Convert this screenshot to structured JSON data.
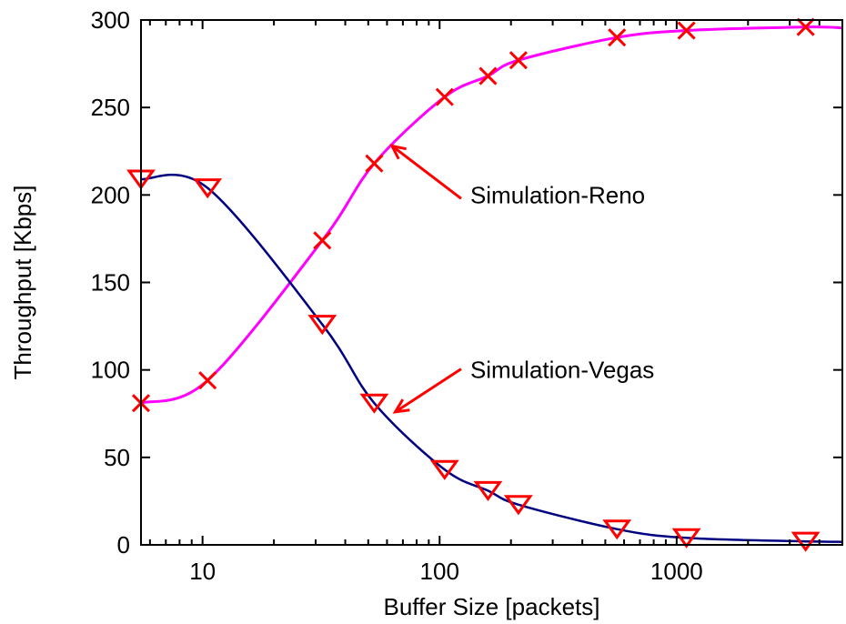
{
  "chart_data": {
    "type": "line",
    "title": "",
    "xlabel": "Buffer Size [packets]",
    "ylabel": "Throughput [Kbps]",
    "x_scale": "log",
    "xlim": [
      5.5,
      5000
    ],
    "ylim": [
      0,
      300
    ],
    "x_ticks": [
      10,
      100,
      1000
    ],
    "x_tick_labels": [
      "10",
      "100",
      "1000"
    ],
    "y_ticks": [
      0,
      50,
      100,
      150,
      200,
      250,
      300
    ],
    "y_tick_labels": [
      "0",
      "50",
      "100",
      "150",
      "200",
      "250",
      "300"
    ],
    "grid": false,
    "legend": "none",
    "series": [
      {
        "name": "Simulation-Reno",
        "color": "#ff00ff",
        "marker": "x",
        "marker_color": "#ff0000",
        "x": [
          5.5,
          10.5,
          32,
          53,
          105,
          160,
          215,
          560,
          1100,
          3500
        ],
        "y": [
          81,
          94,
          174,
          218,
          256,
          268,
          277,
          290,
          294,
          296
        ]
      },
      {
        "name": "Simulation-Vegas",
        "color": "#000080",
        "marker": "triangle-down-open",
        "marker_color": "#ff0000",
        "x": [
          5.5,
          10.5,
          32,
          53,
          105,
          160,
          215,
          560,
          1100,
          3500
        ],
        "y": [
          209,
          204,
          126,
          81,
          43,
          31,
          23,
          9,
          4,
          2
        ]
      }
    ],
    "annotations": [
      {
        "text": "Simulation-Reno",
        "series": 0,
        "arrow_to": {
          "x": 63,
          "y": 228
        },
        "label_at": {
          "x": 130,
          "y": 200
        }
      },
      {
        "text": "Simulation-Vegas",
        "series": 1,
        "arrow_to": {
          "x": 65,
          "y": 76
        },
        "label_at": {
          "x": 130,
          "y": 100
        }
      }
    ]
  }
}
